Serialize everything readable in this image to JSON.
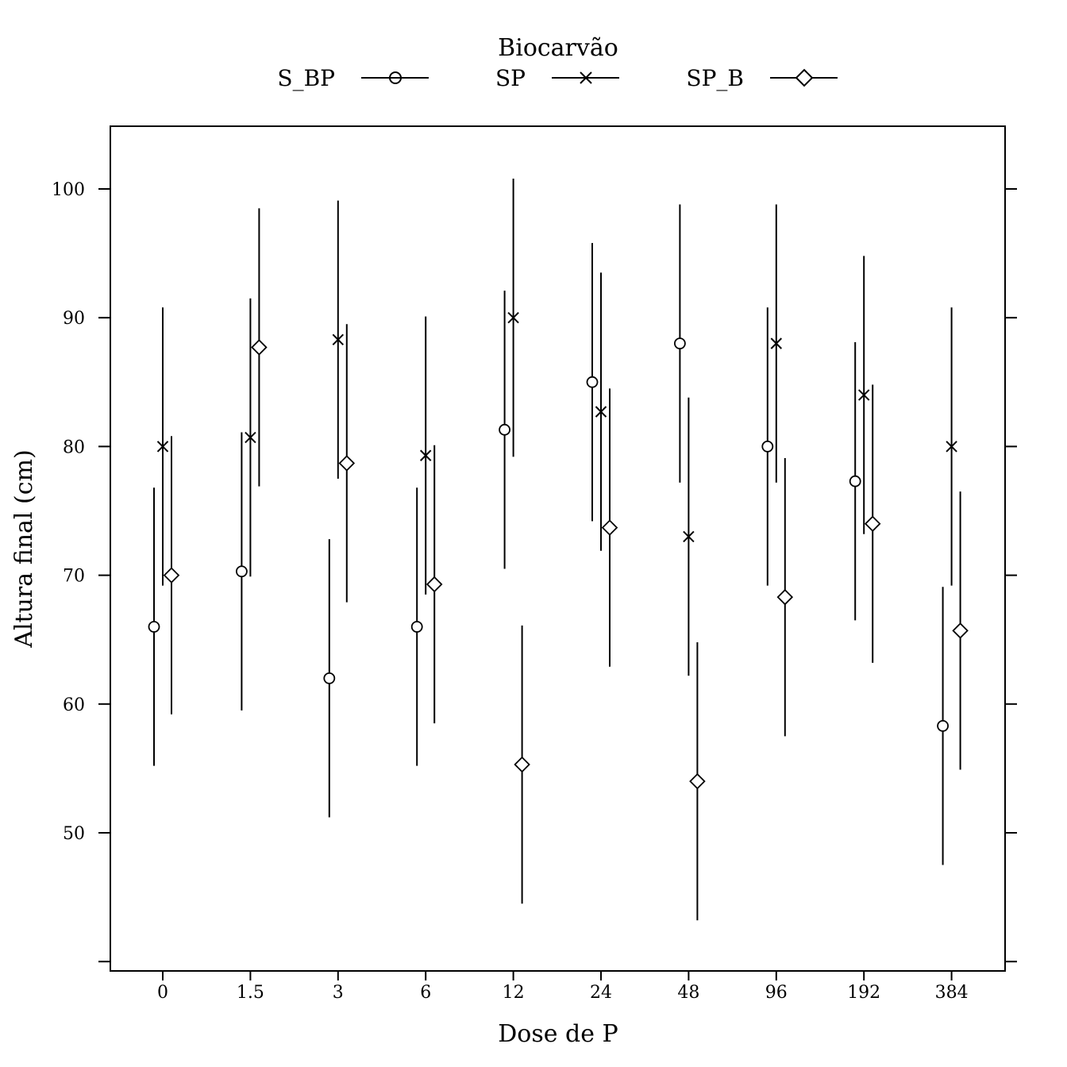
{
  "chart_data": {
    "type": "scatter",
    "xlabel": "Dose de P",
    "ylabel": "Altura final (cm)",
    "ylim": [
      39,
      105
    ],
    "yticks": [
      50,
      60,
      70,
      80,
      90,
      100
    ],
    "grid": false,
    "legend": {
      "title": "Biocarvão",
      "placement": "top-center"
    },
    "categories": [
      "0",
      "1.5",
      "3",
      "6",
      "12",
      "24",
      "48",
      "96",
      "192",
      "384"
    ],
    "series": [
      {
        "name": "S_BP",
        "marker": "circle",
        "values": [
          66,
          70.3,
          62,
          66,
          81.3,
          85,
          88,
          80,
          77.3,
          58.3
        ],
        "lower": [
          55.2,
          59.5,
          51.2,
          55.2,
          70.5,
          74.2,
          77.2,
          69.2,
          66.5,
          47.5
        ],
        "upper": [
          76.8,
          81.1,
          72.8,
          76.8,
          92.1,
          95.8,
          98.8,
          90.8,
          88.1,
          69.1
        ]
      },
      {
        "name": "SP",
        "marker": "cross",
        "values": [
          80,
          80.7,
          88.3,
          79.3,
          90,
          82.7,
          73,
          88,
          84,
          80
        ],
        "lower": [
          69.2,
          69.9,
          77.5,
          68.5,
          79.2,
          71.9,
          62.2,
          77.2,
          73.2,
          69.2
        ],
        "upper": [
          90.8,
          91.5,
          99.1,
          90.1,
          100.8,
          93.5,
          83.8,
          98.8,
          94.8,
          90.8
        ]
      },
      {
        "name": "SP_B",
        "marker": "diamond",
        "values": [
          70,
          87.7,
          78.7,
          69.3,
          55.3,
          73.7,
          54,
          68.3,
          74,
          65.7
        ],
        "lower": [
          59.2,
          76.9,
          67.9,
          58.5,
          44.5,
          62.9,
          43.2,
          57.5,
          63.2,
          54.9
        ],
        "upper": [
          80.8,
          98.5,
          89.5,
          80.1,
          66.1,
          84.5,
          64.8,
          79.1,
          84.8,
          76.5
        ]
      }
    ]
  }
}
